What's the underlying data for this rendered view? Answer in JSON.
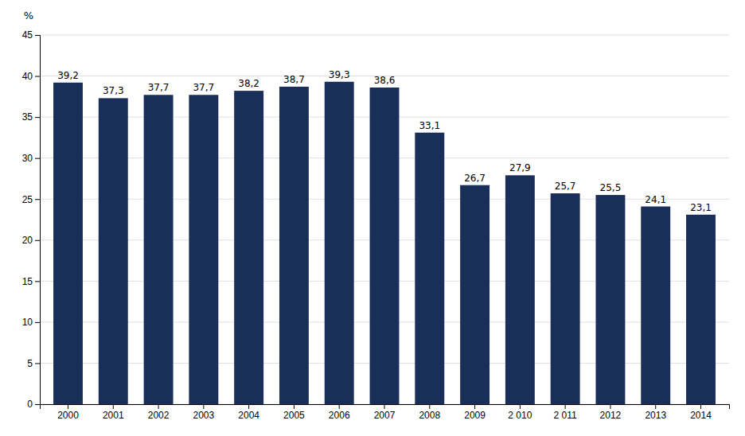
{
  "chart_data": {
    "type": "bar",
    "ylabel": "%",
    "categories": [
      "2000",
      "2001",
      "2002",
      "2003",
      "2004",
      "2005",
      "2006",
      "2007",
      "2008",
      "2009",
      "2 010",
      "2 011",
      "2012",
      "2013",
      "2014"
    ],
    "values": [
      39.2,
      37.3,
      37.7,
      37.7,
      38.2,
      38.7,
      39.3,
      38.6,
      33.1,
      26.7,
      27.9,
      25.7,
      25.5,
      24.1,
      23.1
    ],
    "value_labels": [
      "39,2",
      "37,3",
      "37,7",
      "37,7",
      "38,2",
      "38,7",
      "39,3",
      "38,6",
      "33,1",
      "26,7",
      "27,9",
      "25,7",
      "25,5",
      "24,1",
      "23,1"
    ],
    "data_labels": true,
    "color": "#1a2e5a",
    "ylim": [
      0,
      45
    ],
    "yticks": [
      0,
      5,
      10,
      15,
      20,
      25,
      30,
      35,
      40,
      45
    ],
    "grid": true
  }
}
